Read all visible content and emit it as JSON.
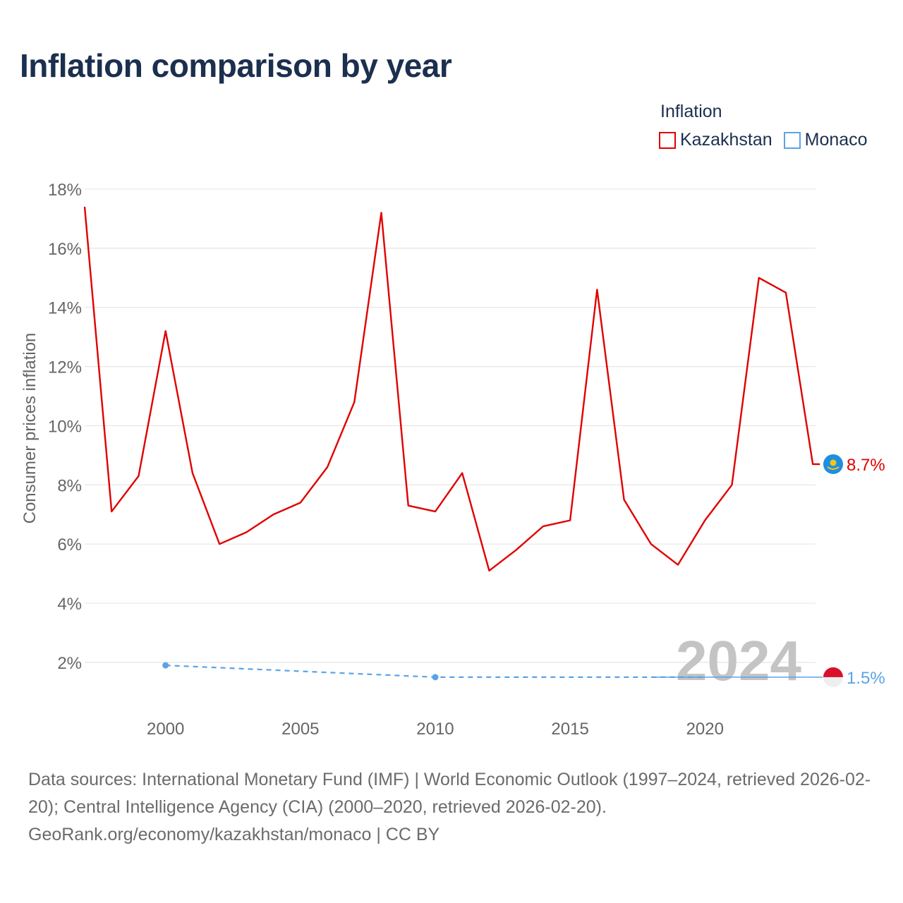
{
  "title": "Inflation comparison by year",
  "legend": {
    "title": "Inflation",
    "items": [
      {
        "label": "Kazakhstan",
        "color": "#e00000"
      },
      {
        "label": "Monaco",
        "color": "#5aa3e6"
      }
    ]
  },
  "sources": {
    "line1": "Data sources: International Monetary Fund (IMF) | World Economic Outlook (1997–2024, retrieved 2026-02-20); Central Intelligence Agency (CIA) (2000–2020, retrieved 2026-02-20).",
    "line2": "GeoRank.org/economy/kazakhstan/monaco | CC BY"
  },
  "chart_data": {
    "type": "line",
    "title": "Inflation comparison by year",
    "ylabel": "Consumer prices inflation",
    "xlabel": "",
    "xlim": [
      1997,
      2024.1
    ],
    "ylim": [
      0.4,
      18
    ],
    "yticks": [
      2,
      4,
      6,
      8,
      10,
      12,
      14,
      16,
      18
    ],
    "ytick_labels": [
      "2%",
      "4%",
      "6%",
      "8%",
      "10%",
      "12%",
      "14%",
      "16%",
      "18%"
    ],
    "xticks": [
      2000,
      2005,
      2010,
      2015,
      2020
    ],
    "xtick_labels": [
      "2000",
      "2005",
      "2010",
      "2015",
      "2020"
    ],
    "watermark_year": "2024",
    "series": [
      {
        "name": "Kazakhstan",
        "color": "#e00000",
        "x": [
          1997,
          1998,
          1999,
          2000,
          2001,
          2002,
          2003,
          2004,
          2005,
          2006,
          2007,
          2008,
          2009,
          2010,
          2011,
          2012,
          2013,
          2014,
          2015,
          2016,
          2017,
          2018,
          2019,
          2020,
          2021,
          2022,
          2023,
          2024
        ],
        "values": [
          17.4,
          7.1,
          8.3,
          13.2,
          8.4,
          6.0,
          6.4,
          7.0,
          7.4,
          8.6,
          10.8,
          17.2,
          7.3,
          7.1,
          8.4,
          5.1,
          5.8,
          6.6,
          6.8,
          14.6,
          7.5,
          6.0,
          5.3,
          6.8,
          8.0,
          15.0,
          14.5,
          8.7
        ],
        "end_label": "8.7%",
        "flag": "Kazakhstan flag"
      },
      {
        "name": "Monaco",
        "color": "#5aa3e6",
        "x": [
          2000,
          2010,
          2020,
          2024
        ],
        "values": [
          1.9,
          1.5,
          1.5,
          1.5
        ],
        "end_label": "1.5%",
        "flag": "Monaco flag"
      }
    ]
  }
}
